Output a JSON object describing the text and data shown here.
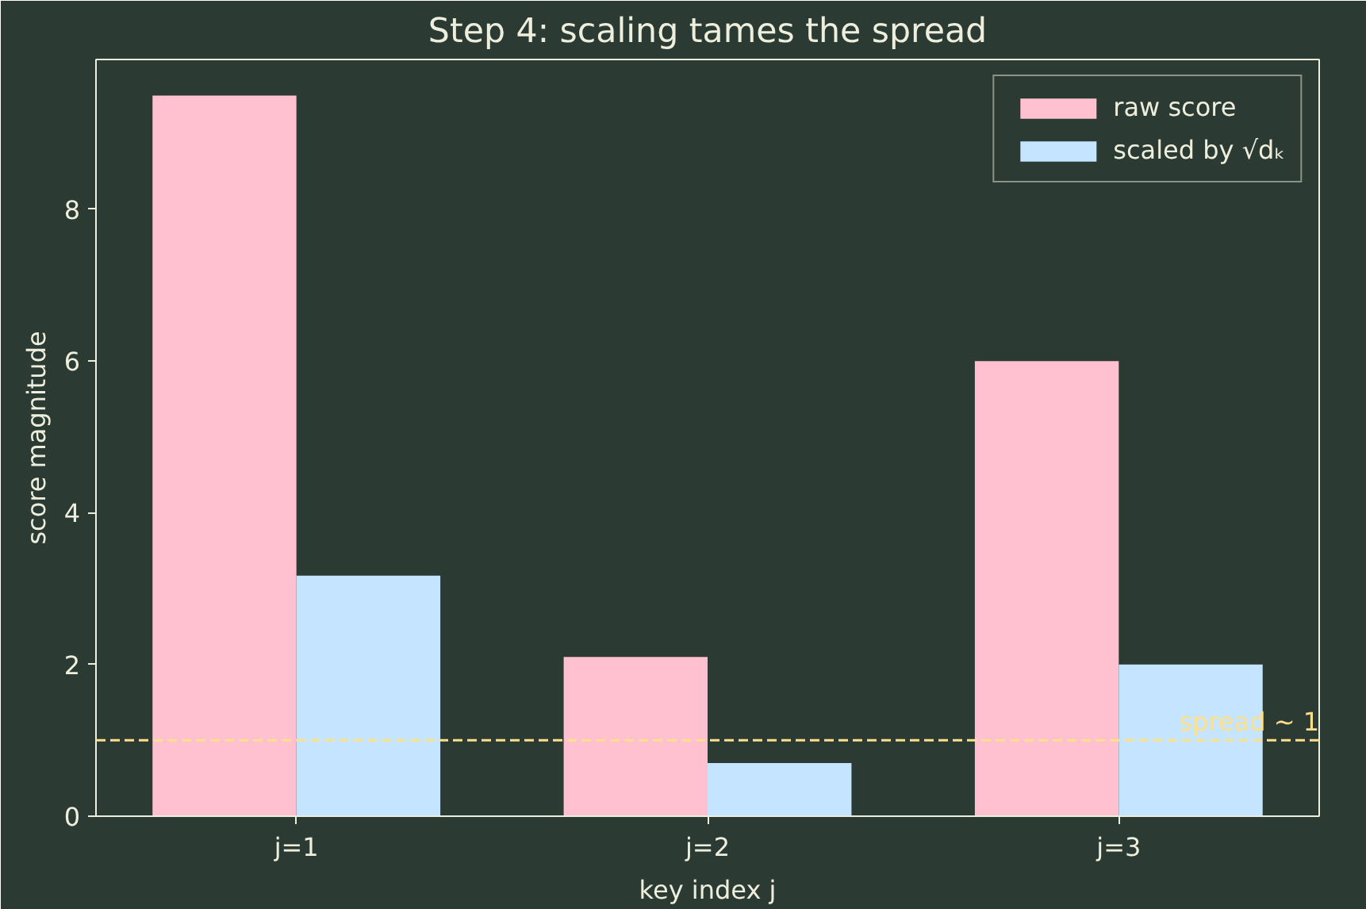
{
  "chart_data": {
    "type": "bar",
    "title": "Step 4: scaling tames the spread",
    "xlabel": "key index j",
    "ylabel": "score magnitude",
    "categories": [
      "j=1",
      "j=2",
      "j=3"
    ],
    "series": [
      {
        "name": "raw score",
        "color": "#ffc0cf",
        "values": [
          9.5,
          2.1,
          6.0
        ]
      },
      {
        "name": "scaled by √dₖ",
        "color": "#c4e4ff",
        "values": [
          3.17,
          0.7,
          2.0
        ]
      }
    ],
    "ylim": [
      0,
      9.975
    ],
    "yticks": [
      0,
      2,
      4,
      6,
      8
    ],
    "grid": false,
    "legend": "top right",
    "ref_lines": [
      {
        "axis": "y",
        "value": 1,
        "label": "spread ~ 1",
        "color": "#ffe08a",
        "line_style": "dashed"
      }
    ]
  }
}
